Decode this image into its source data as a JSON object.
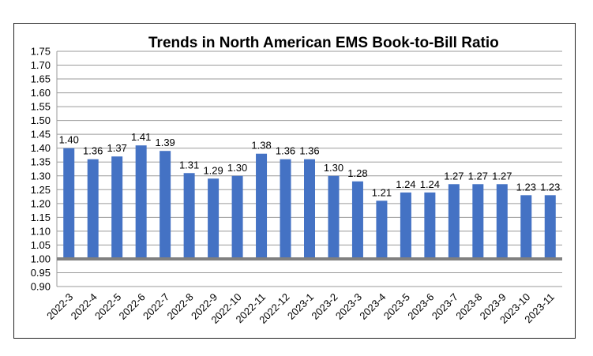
{
  "chart_data": {
    "type": "bar",
    "title": "Trends in North American EMS Book-to-Bill Ratio",
    "xlabel": "",
    "ylabel": "",
    "ylim": [
      0.9,
      1.75
    ],
    "ytick_step": 0.05,
    "reference_line": 1.0,
    "grid": true,
    "bar_color": "#4472C4",
    "reference_line_color": "#808080",
    "categories": [
      "2022-3",
      "2022-4",
      "2022-5",
      "2022-6",
      "2022-7",
      "2022-8",
      "2022-9",
      "2022-10",
      "2022-11",
      "2022-12",
      "2023-1",
      "2023-2",
      "2023-3",
      "2023-4",
      "2023-5",
      "2023-6",
      "2023-7",
      "2023-8",
      "2023-9",
      "2023-10",
      "2023-11"
    ],
    "values": [
      1.4,
      1.36,
      1.37,
      1.41,
      1.39,
      1.31,
      1.29,
      1.3,
      1.38,
      1.36,
      1.36,
      1.3,
      1.28,
      1.21,
      1.24,
      1.24,
      1.27,
      1.27,
      1.27,
      1.23,
      1.23
    ],
    "value_labels": [
      "1.40",
      "1.36",
      "1.37",
      "1.41",
      "1.39",
      "1.31",
      "1.29",
      "1.30",
      "1.38",
      "1.36",
      "1.36",
      "1.30",
      "1.28",
      "1.21",
      "1.24",
      "1.24",
      "1.27",
      "1.27",
      "1.27",
      "1.23",
      "1.23"
    ]
  }
}
